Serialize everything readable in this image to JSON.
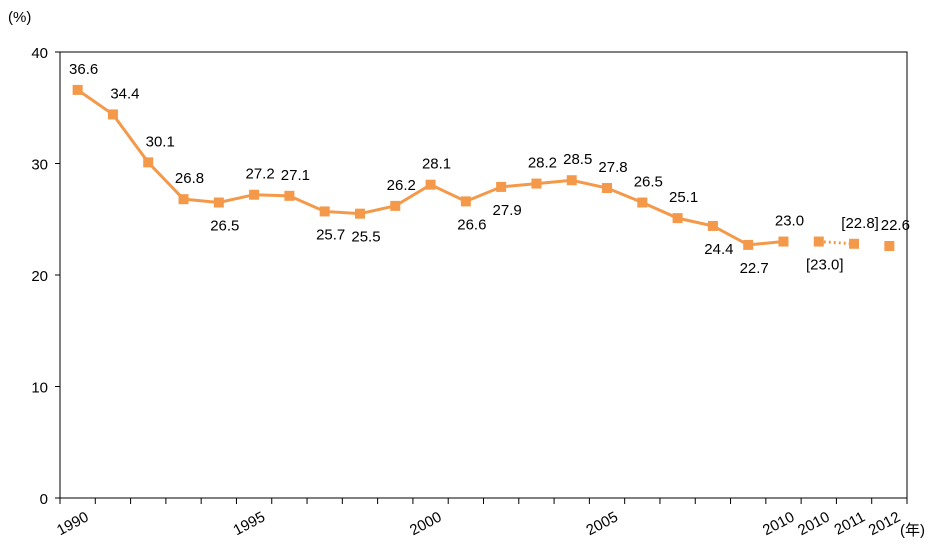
{
  "chart_data": {
    "type": "line",
    "y_label": "(%)",
    "x_label": "(年)",
    "categories": [
      "1990",
      null,
      null,
      null,
      null,
      "1995",
      null,
      null,
      null,
      null,
      "2000",
      null,
      null,
      null,
      null,
      "2005",
      null,
      null,
      null,
      null,
      "2010",
      "2010",
      "2011",
      "2012"
    ],
    "series": [
      {
        "color": "#f4994a",
        "values": [
          36.6,
          34.4,
          30.1,
          26.8,
          26.5,
          27.2,
          27.1,
          25.7,
          25.5,
          26.2,
          28.1,
          26.6,
          27.9,
          28.2,
          28.5,
          27.8,
          26.5,
          25.1,
          24.4,
          22.7,
          23.0,
          23.0,
          22.8,
          22.6
        ],
        "value_labels": [
          "36.6",
          "34.4",
          "30.1",
          "26.8",
          "26.5",
          "27.2",
          "27.1",
          "25.7",
          "25.5",
          "26.2",
          "28.1",
          "26.6",
          "27.9",
          "28.2",
          "28.5",
          "27.8",
          "26.5",
          "25.1",
          "24.4",
          "22.7",
          "23.0",
          "[23.0]",
          "[22.8]",
          "22.6"
        ],
        "segments": [
          {
            "from": 0,
            "to": 20,
            "style": "solid"
          },
          {
            "from": 21,
            "to": 22,
            "style": "dotted"
          }
        ]
      }
    ],
    "ylim": [
      0,
      40
    ],
    "yticks": [
      0,
      10,
      20,
      30,
      40
    ],
    "grid": false
  }
}
